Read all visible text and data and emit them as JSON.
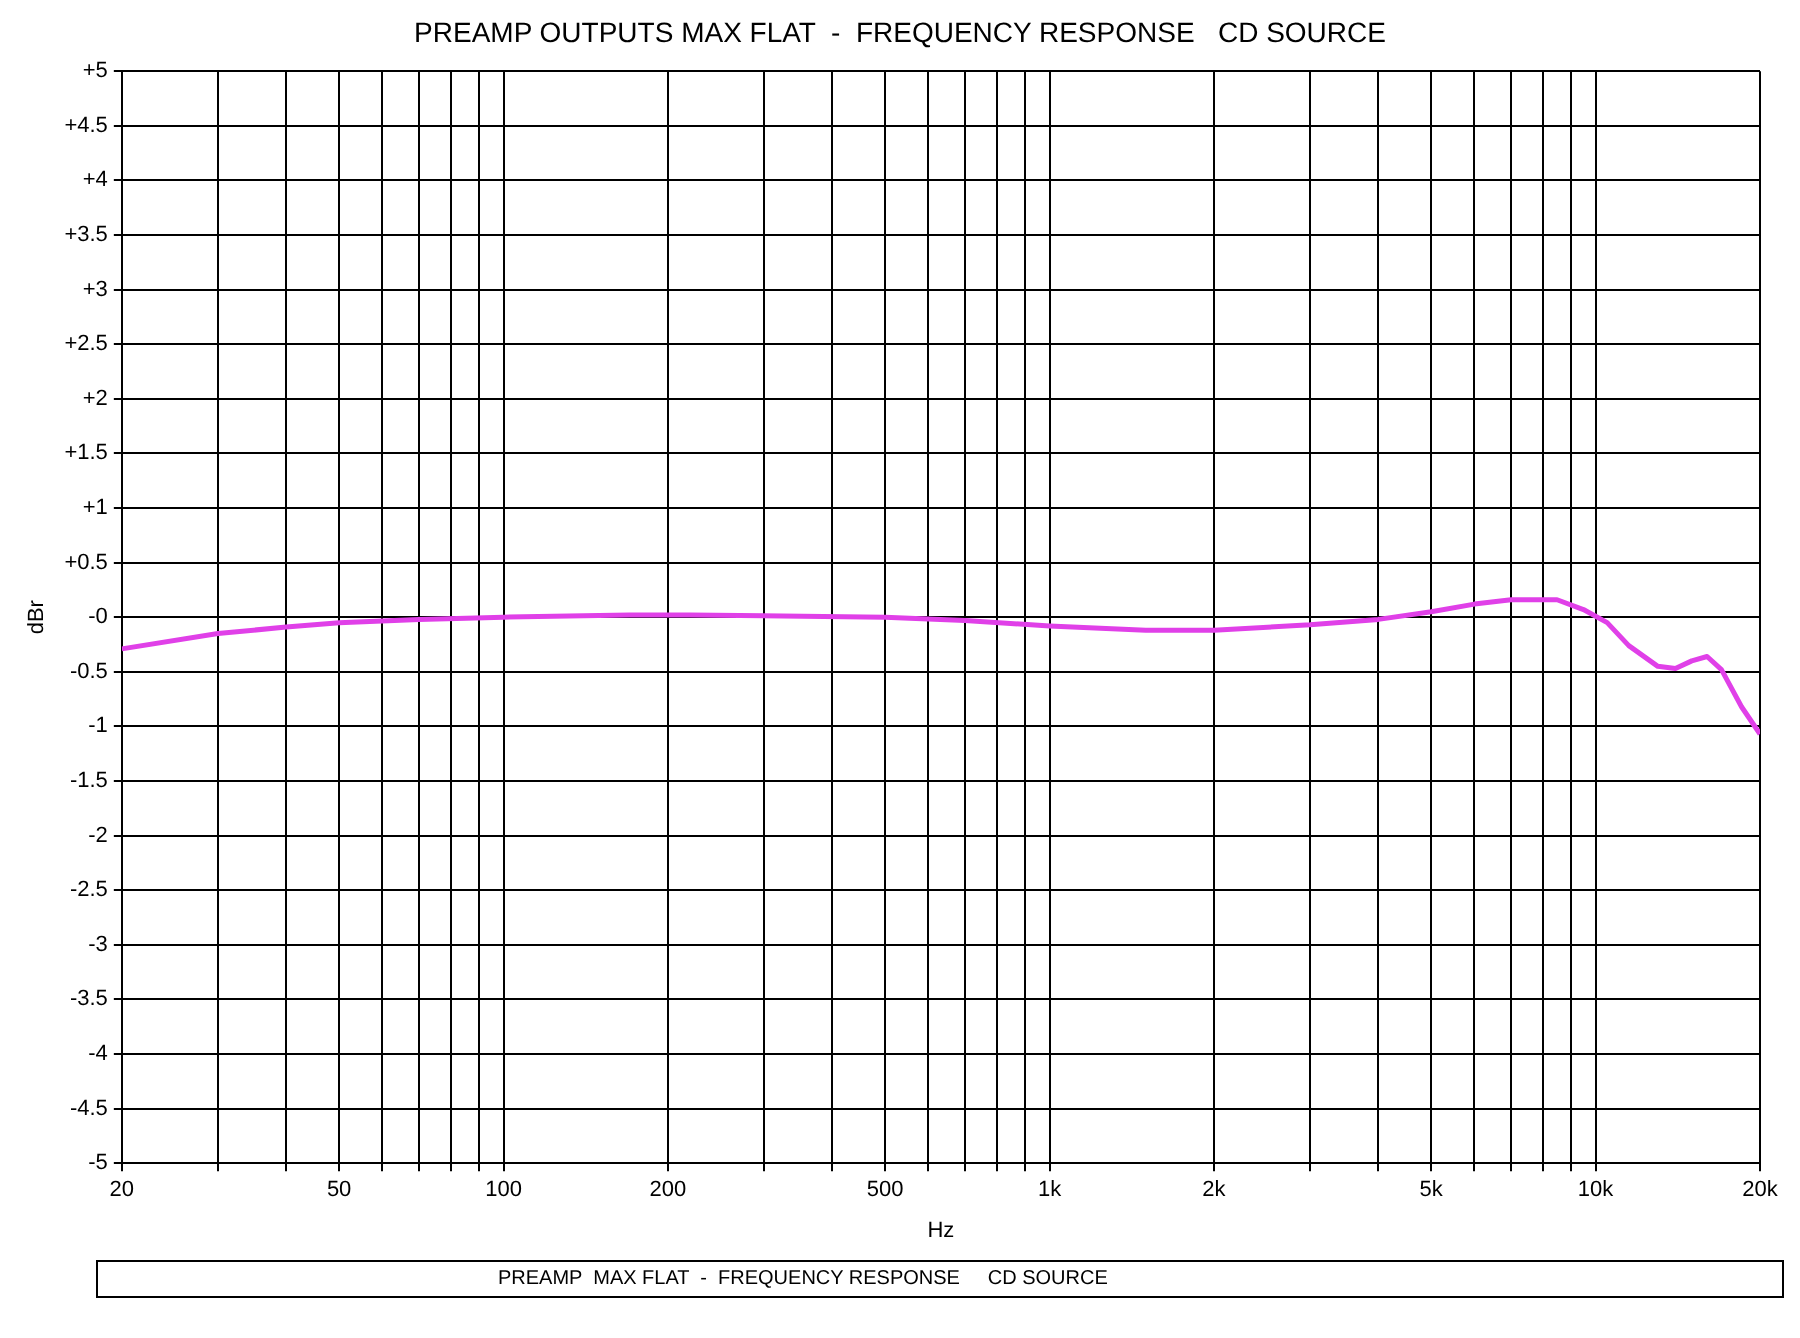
{
  "chart_data": {
    "type": "line",
    "title": "PREAMP OUTPUTS MAX FLAT  -  FREQUENCY RESPONSE   CD SOURCE",
    "xlabel": "Hz",
    "ylabel": "dBr",
    "log": "x",
    "grid": true,
    "legend": false,
    "marker": "none",
    "line_style": "solid",
    "annotations": [
      "PREAMP  MAX FLAT  -  FREQUENCY RESPONSE     CD SOURCE"
    ],
    "x": [
      20,
      30,
      40,
      50,
      70,
      100,
      170,
      220,
      500,
      700,
      1000,
      1500,
      2000,
      3000,
      4000,
      5000,
      6000,
      7000,
      8500,
      9500,
      10500,
      11500,
      13000,
      14000,
      15000,
      16000,
      17000,
      18500,
      20000
    ],
    "series": [
      {
        "color": "#e040e8",
        "values": [
          -0.29,
          -0.15,
          -0.09,
          -0.05,
          -0.02,
          0,
          0.02,
          0.02,
          0,
          -0.03,
          -0.08,
          -0.12,
          -0.12,
          -0.07,
          -0.02,
          0.05,
          0.12,
          0.16,
          0.16,
          0.07,
          -0.05,
          -0.26,
          -0.45,
          -0.47,
          -0.4,
          -0.36,
          -0.48,
          -0.82,
          -1.07
        ]
      }
    ],
    "xlim": [
      20,
      20000
    ],
    "xticks": [
      20,
      {
        "value": 30,
        "label": null
      },
      {
        "value": 40,
        "label": null
      },
      50,
      {
        "value": 60,
        "label": null
      },
      {
        "value": 70,
        "label": null
      },
      {
        "value": 80,
        "label": null
      },
      {
        "value": 90,
        "label": null
      },
      100,
      200,
      {
        "value": 300,
        "label": null
      },
      {
        "value": 400,
        "label": null
      },
      500,
      {
        "value": 600,
        "label": null
      },
      {
        "value": 700,
        "label": null
      },
      {
        "value": 800,
        "label": null
      },
      {
        "value": 900,
        "label": null
      },
      {
        "value": 1000,
        "label": "1k"
      },
      {
        "value": 2000,
        "label": "2k"
      },
      {
        "value": 3000,
        "label": null
      },
      {
        "value": 4000,
        "label": null
      },
      {
        "value": 5000,
        "label": "5k"
      },
      {
        "value": 6000,
        "label": null
      },
      {
        "value": 7000,
        "label": null
      },
      {
        "value": 8000,
        "label": null
      },
      {
        "value": 9000,
        "label": null
      },
      {
        "value": 10000,
        "label": "10k"
      },
      {
        "value": 20000,
        "label": "20k"
      }
    ],
    "ylim": [
      -5,
      5
    ],
    "yticks": [
      -5,
      -4.5,
      -4,
      -3.5,
      -3,
      -2.5,
      -2,
      -1.5,
      -1,
      -0.5,
      {
        "value": 0,
        "label": "-0"
      },
      {
        "value": 0.5,
        "label": "+0.5"
      },
      {
        "value": 1,
        "label": "+1"
      },
      {
        "value": 1.5,
        "label": "+1.5"
      },
      {
        "value": 2,
        "label": "+2"
      },
      {
        "value": 2.5,
        "label": "+2.5"
      },
      {
        "value": 3,
        "label": "+3"
      },
      {
        "value": 3.5,
        "label": "+3.5"
      },
      {
        "value": 4,
        "label": "+4"
      },
      {
        "value": 4.5,
        "label": "+4.5"
      },
      {
        "value": 5,
        "label": "+5"
      }
    ]
  }
}
